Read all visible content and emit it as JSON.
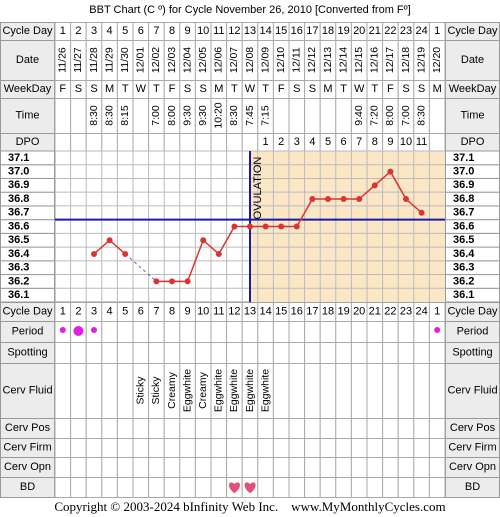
{
  "chart_data": {
    "type": "line",
    "title": "BBT Chart (C º) for Cycle November 26, 2010  [Converted from Fº]",
    "row_labels": {
      "cycle_day": "Cycle Day",
      "date": "Date",
      "weekday": "WeekDay",
      "time": "Time",
      "dpo": "DPO",
      "period": "Period",
      "spotting": "Spotting",
      "cerv_fluid": "Cerv Fluid",
      "cerv_pos": "Cerv Pos",
      "cerv_firm": "Cerv Firm",
      "cerv_opn": "Cerv Opn",
      "bd": "BD"
    },
    "categories": [
      1,
      2,
      3,
      4,
      5,
      6,
      7,
      8,
      9,
      10,
      11,
      12,
      13,
      14,
      15,
      16,
      17,
      18,
      19,
      20,
      21,
      22,
      23,
      24,
      1
    ],
    "dates": [
      "11/26",
      "11/27",
      "11/28",
      "11/29",
      "11/30",
      "12/01",
      "12/02",
      "12/03",
      "12/04",
      "12/05",
      "12/06",
      "12/07",
      "12/08",
      "12/09",
      "12/10",
      "12/11",
      "12/12",
      "12/13",
      "12/14",
      "12/15",
      "12/16",
      "12/17",
      "12/18",
      "12/19",
      "12/20"
    ],
    "weekdays": [
      "F",
      "S",
      "S",
      "M",
      "T",
      "W",
      "T",
      "F",
      "S",
      "S",
      "M",
      "T",
      "W",
      "T",
      "F",
      "S",
      "S",
      "M",
      "T",
      "W",
      "T",
      "F",
      "S",
      "S",
      "M"
    ],
    "times": [
      null,
      null,
      "8:30",
      "8:30",
      "8:15",
      null,
      "7:00",
      "8:00",
      "9:30",
      "9:30",
      "10:20",
      "8:30",
      "7:45",
      "7:15",
      null,
      null,
      null,
      null,
      null,
      "9:40",
      "7:20",
      "8:00",
      "7:00",
      "8:30",
      null
    ],
    "dpo": [
      null,
      null,
      null,
      null,
      null,
      null,
      null,
      null,
      null,
      null,
      null,
      null,
      null,
      1,
      2,
      3,
      4,
      5,
      6,
      7,
      8,
      9,
      10,
      11,
      null
    ],
    "cerv_fluid": [
      null,
      null,
      null,
      null,
      null,
      "Sticky",
      "Sticky",
      "Creamy",
      "Eggwhite",
      "Creamy",
      "Eggwhite",
      "Eggwhite",
      "Eggwhite",
      "Eggwhite",
      null,
      null,
      null,
      null,
      null,
      null,
      null,
      null,
      null,
      null,
      null
    ],
    "values": [
      null,
      null,
      36.4,
      36.5,
      36.4,
      null,
      36.2,
      36.2,
      36.2,
      36.5,
      36.4,
      36.6,
      36.6,
      36.6,
      36.6,
      36.6,
      36.8,
      36.8,
      36.8,
      36.8,
      36.9,
      37.0,
      36.8,
      36.7,
      null
    ],
    "color": "#dd3333",
    "ylim": [
      36.05,
      37.15
    ],
    "yticks": [
      {
        "value": 36.1,
        "label": "36.1"
      },
      {
        "value": 36.2,
        "label": "36.2"
      },
      {
        "value": 36.3,
        "label": "36.3"
      },
      {
        "value": 36.4,
        "label": "36.4"
      },
      {
        "value": 36.5,
        "label": "36.5"
      },
      {
        "value": 36.6,
        "label": "36.6"
      },
      {
        "value": 36.7,
        "label": "36.7"
      },
      {
        "value": 36.8,
        "label": "36.8"
      },
      {
        "value": 36.9,
        "label": "36.9"
      },
      {
        "value": 37.0,
        "label": "37.0"
      },
      {
        "value": 37.1,
        "label": "37.1"
      }
    ],
    "coverline": 36.65,
    "ovulation_day": 13,
    "ovulation_label": "OVULATION",
    "footer": "Copyright © 2003-2024 bInfinity Web Inc.    www.MyMonthlyCycles.com"
  }
}
